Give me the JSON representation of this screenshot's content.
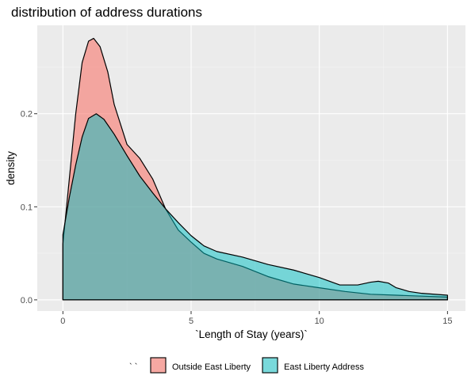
{
  "chart_data": {
    "type": "area",
    "title": "distribution of address durations",
    "xlabel": "`Length of Stay (years)`",
    "ylabel": "density",
    "xlim": [
      -1.0,
      15.7
    ],
    "ylim": [
      -0.012,
      0.295
    ],
    "x_ticks": [
      0,
      5,
      10,
      15
    ],
    "x_tick_labels": [
      "0",
      "5",
      "10",
      "15"
    ],
    "y_ticks": [
      0.0,
      0.1,
      0.2
    ],
    "y_tick_labels": [
      "0.0",
      "0.1",
      "0.2"
    ],
    "grid": true,
    "legend": {
      "title": "` `",
      "position": "bottom"
    },
    "series": [
      {
        "name": "Outside East Liberty",
        "fill": "#F8766D",
        "fill_opacity": 0.6,
        "x": [
          0,
          0.25,
          0.5,
          0.75,
          1.0,
          1.2,
          1.45,
          1.75,
          2.0,
          2.5,
          3.0,
          3.5,
          4.0,
          4.5,
          5.0,
          5.5,
          6.0,
          7.0,
          8.0,
          9.0,
          10.0,
          11.0,
          12.0,
          13.0,
          14.0,
          15.0
        ],
        "y": [
          0.06,
          0.13,
          0.2,
          0.255,
          0.278,
          0.281,
          0.272,
          0.245,
          0.21,
          0.167,
          0.152,
          0.13,
          0.098,
          0.075,
          0.062,
          0.05,
          0.044,
          0.036,
          0.025,
          0.017,
          0.013,
          0.009,
          0.006,
          0.005,
          0.004,
          0.003
        ]
      },
      {
        "name": "East Liberty Address",
        "fill": "#00BFC4",
        "fill_opacity": 0.5,
        "x": [
          0,
          0.25,
          0.5,
          0.75,
          1.0,
          1.3,
          1.6,
          2.0,
          2.5,
          3.0,
          3.5,
          4.0,
          4.5,
          5.0,
          5.5,
          6.0,
          7.0,
          8.0,
          9.0,
          10.0,
          10.8,
          11.5,
          12.0,
          12.3,
          12.7,
          13.0,
          13.5,
          14.0,
          15.0
        ],
        "y": [
          0.07,
          0.11,
          0.145,
          0.175,
          0.195,
          0.2,
          0.194,
          0.178,
          0.155,
          0.133,
          0.115,
          0.098,
          0.083,
          0.069,
          0.058,
          0.052,
          0.046,
          0.038,
          0.032,
          0.024,
          0.016,
          0.016,
          0.019,
          0.02,
          0.018,
          0.013,
          0.009,
          0.007,
          0.005
        ]
      }
    ]
  }
}
